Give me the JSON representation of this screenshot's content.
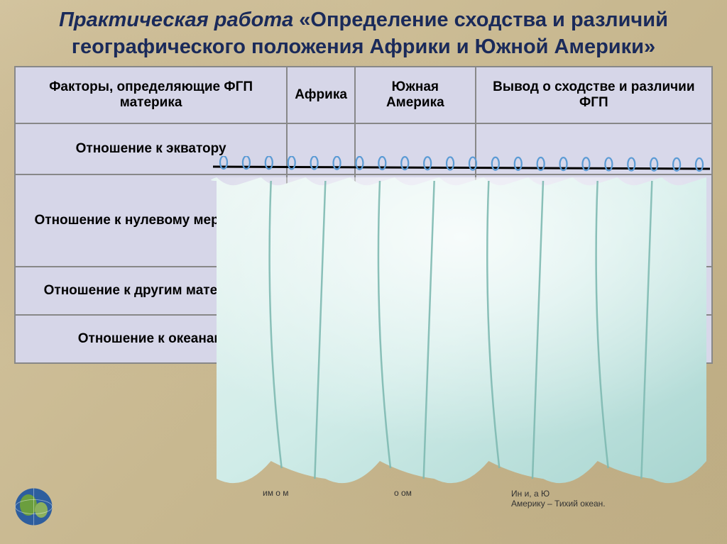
{
  "title": {
    "italic_part": "Практическая работа",
    "rest": " «Определение сходства и различий  географического положения Африки и Южной Америки»"
  },
  "table": {
    "headers": [
      "Факторы, определяющие ФГП материка",
      "Африка",
      "Южная Америка",
      "Вывод о сходстве и различии ФГП"
    ],
    "rows": [
      {
        "label": "Отношение к экватору"
      },
      {
        "label": "Отношение к нулевому меридиану"
      },
      {
        "label": "Отношение к другим материкам"
      },
      {
        "label": "Отношение к океанам"
      }
    ]
  },
  "extra_text": {
    "line_1": "им о м",
    "line_2": "о   ом",
    "line_3a": "Ин             и, а Ю",
    "line_3b": "Америку – Тихий океан."
  },
  "curtain": {
    "rail_color": "#000000",
    "ring_color": "#5b9bd5",
    "fabric_light": "#e8f5f2",
    "fabric_dark": "#a8d5d0",
    "fold_count": 9,
    "ring_count": 22
  },
  "colors": {
    "title": "#1a2a5a",
    "table_bg": "#d8d8ea",
    "table_border": "#888888",
    "bg_gradient_1": "#d4c5a0",
    "bg_gradient_2": "#bfae85"
  }
}
